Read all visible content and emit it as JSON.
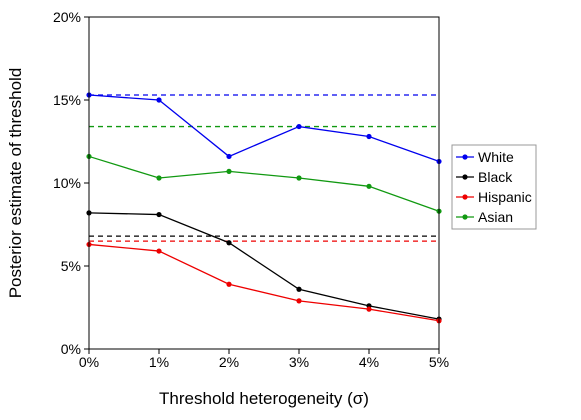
{
  "chart_data": {
    "type": "line",
    "xlabel": "Threshold heterogeneity (σ)",
    "ylabel": "Posterior estimate of threshold",
    "x": [
      0,
      1,
      2,
      3,
      4,
      5
    ],
    "x_tick_labels": [
      "0%",
      "1%",
      "2%",
      "3%",
      "4%",
      "5%"
    ],
    "xlim": [
      0,
      5
    ],
    "ylim": [
      0,
      20
    ],
    "y_ticks": [
      0,
      5,
      10,
      15,
      20
    ],
    "y_tick_labels": [
      "0%",
      "5%",
      "10%",
      "15%",
      "20%"
    ],
    "grid": false,
    "legend_position": "right",
    "series": [
      {
        "name": "White",
        "color": "#0000ee",
        "values": [
          15.3,
          15.0,
          11.6,
          13.4,
          12.8,
          11.3
        ],
        "reference": 15.3
      },
      {
        "name": "Black",
        "color": "#000000",
        "values": [
          8.2,
          8.1,
          6.4,
          3.6,
          2.6,
          1.8
        ],
        "reference": 6.8
      },
      {
        "name": "Hispanic",
        "color": "#ee0000",
        "values": [
          6.3,
          5.9,
          3.9,
          2.9,
          2.4,
          1.7
        ],
        "reference": 6.5
      },
      {
        "name": "Asian",
        "color": "#119911",
        "values": [
          11.6,
          10.3,
          10.7,
          10.3,
          9.8,
          8.3
        ],
        "reference": 13.4
      }
    ]
  }
}
